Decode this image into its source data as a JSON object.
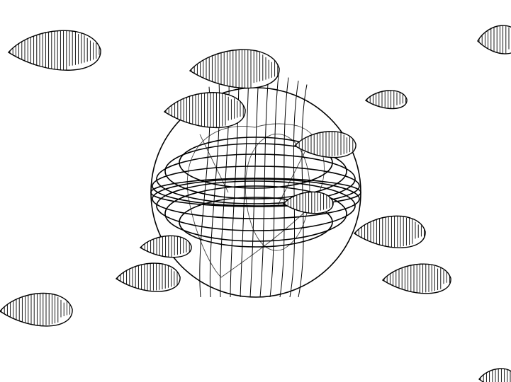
{
  "scene": {
    "subject": "",
    "colors": {
      "background": "#ffffff",
      "ink": "#000000",
      "faint_ink": "#444444"
    },
    "icons": [
      "wireframe-globe-icon",
      "hatched-leaf-icon"
    ]
  }
}
